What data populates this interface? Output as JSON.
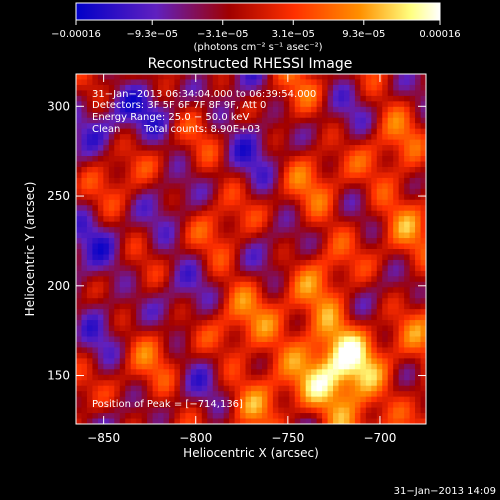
{
  "chart_data": {
    "type": "heatmap",
    "title": "Reconstructed RHESSI Image",
    "xlabel": "Heliocentric X (arcsec)",
    "ylabel": "Heliocentric Y (arcsec)",
    "xlim": [
      -865,
      -675
    ],
    "ylim": [
      123,
      318
    ],
    "x_ticks": [
      -850,
      -800,
      -750,
      -700
    ],
    "x_tick_labels": [
      "−850",
      "−800",
      "−750",
      "−700"
    ],
    "y_ticks": [
      150,
      200,
      250,
      300
    ],
    "y_tick_labels": [
      "150",
      "200",
      "250",
      "300"
    ],
    "colorbar": {
      "min": -0.00016,
      "max": 0.00016,
      "ticks": [
        -0.00016,
        -9.3e-05,
        -3.1e-05,
        3.1e-05,
        9.3e-05,
        0.00016
      ],
      "tick_labels": [
        "−0.00016",
        "−9.3e−05",
        "−3.1e−05",
        "3.1e−05",
        "9.3e−05",
        "0.00016"
      ],
      "units": "(photons cm⁻² s⁻¹ asec⁻²)",
      "colors": [
        "#0000c8",
        "#6020c0",
        "#a00000",
        "#ff3000",
        "#ff9000",
        "#ffff80",
        "#ffffff"
      ]
    },
    "peak_position": [
      -714,
      136
    ],
    "grid": false
  },
  "info": {
    "time_range": "31−Jan−2013 06:34:04.000 to 06:39:54.000",
    "detectors": "Detectors: 3F 5F 6F 7F 8F 9F, Att 0",
    "energy_range": "Energy Range: 25.0 − 50.0 keV",
    "clean_label": "Clean",
    "total_counts": "Total counts: 8.90E+03",
    "peak_text": "Position of Peak = [−714,136]"
  },
  "footer": {
    "timestamp": "31−Jan−2013 14:09"
  }
}
